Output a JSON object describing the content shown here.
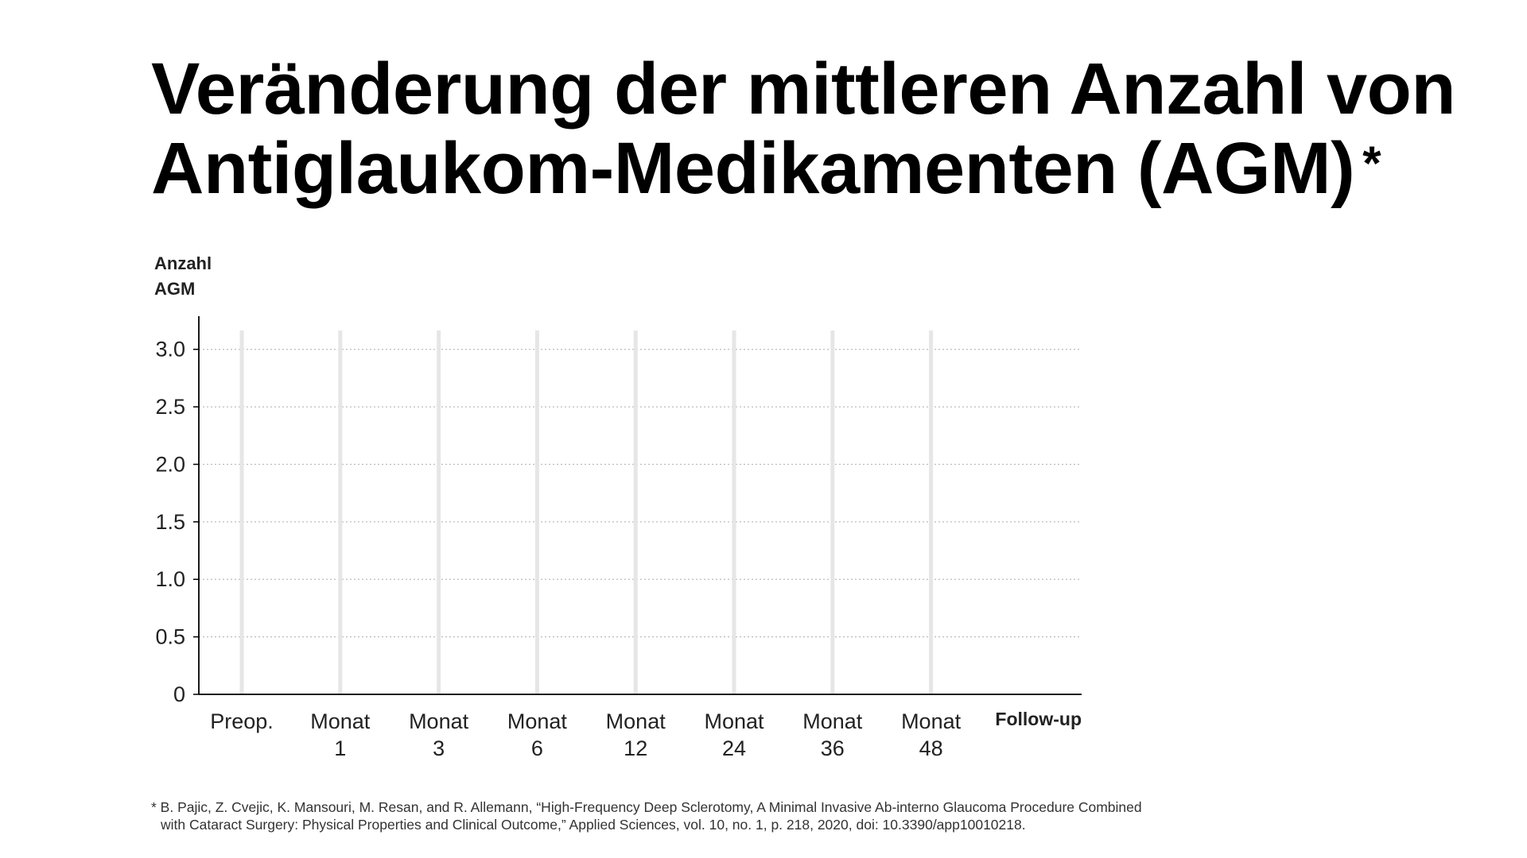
{
  "title_line1": "Veränderung der mittleren Anzahl von",
  "title_line2": "Antiglaukom-Medikamenten (AGM)",
  "title_mark": "*",
  "ylabel_line1": "Anzahl",
  "ylabel_line2": "AGM",
  "footnote_line1": "* B. Pajic, Z. Cvejic, K. Mansouri, M. Resan, and R. Allemann, “High-Frequency Deep Sclerotomy, A Minimal Invasive Ab-interno Glaucoma Procedure Combined",
  "footnote_line2": "with Cataract Surgery: Physical Properties and Clinical Outcome,” Applied Sciences, vol. 10, no. 1, p. 218, 2020, doi: 10.3390/app10010218.",
  "colors": {
    "text": "#000000",
    "grid": "#bbbbbb",
    "category_band": "#e6e6e6",
    "axis": "#000000"
  },
  "chart_data": {
    "type": "bar",
    "title": "Veränderung der mittleren Anzahl von Antiglaukom-Medikamenten (AGM)",
    "ylabel": "Anzahl AGM",
    "xlabel": "Follow-up",
    "categories": [
      [
        "Preop."
      ],
      [
        "Monat",
        "1"
      ],
      [
        "Monat",
        "3"
      ],
      [
        "Monat",
        "6"
      ],
      [
        "Monat",
        "12"
      ],
      [
        "Monat",
        "24"
      ],
      [
        "Monat",
        "36"
      ],
      [
        "Monat",
        "48"
      ]
    ],
    "yticks": [
      "0",
      "0.5",
      "1.0",
      "1.5",
      "2.0",
      "2.5",
      "3.0"
    ],
    "ytick_values": [
      0,
      0.5,
      1.0,
      1.5,
      2.0,
      2.5,
      3.0
    ],
    "ylim": [
      0,
      3.15
    ],
    "series": [],
    "grid": true,
    "grid_style": "dotted horizontal"
  }
}
